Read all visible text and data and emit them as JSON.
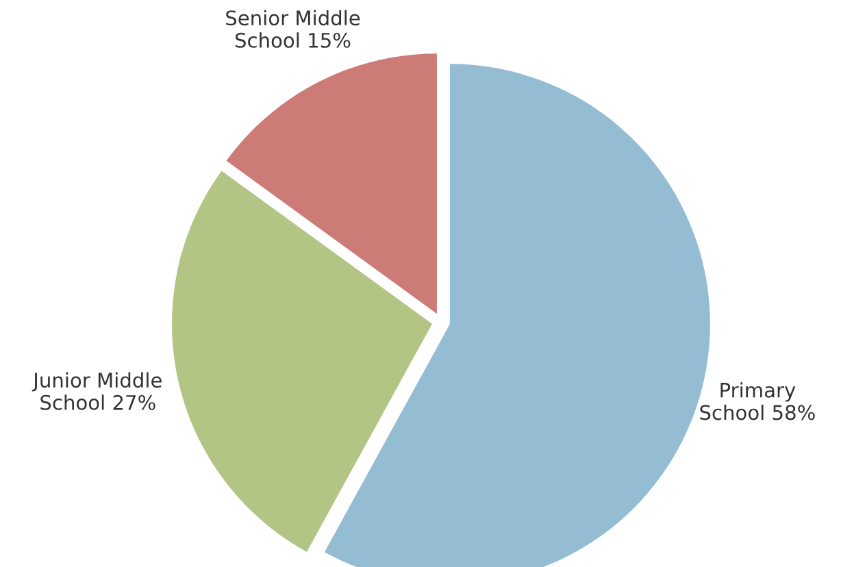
{
  "chart_data": {
    "type": "pie",
    "categories": [
      "Primary School",
      "Junior Middle School",
      "Senior Middle School"
    ],
    "values": [
      58,
      27,
      15
    ],
    "value_labels": [
      "58%",
      "27%",
      "15%"
    ],
    "colors": [
      "#94bdd3",
      "#b3c585",
      "#cd7b77"
    ],
    "legend": false
  }
}
